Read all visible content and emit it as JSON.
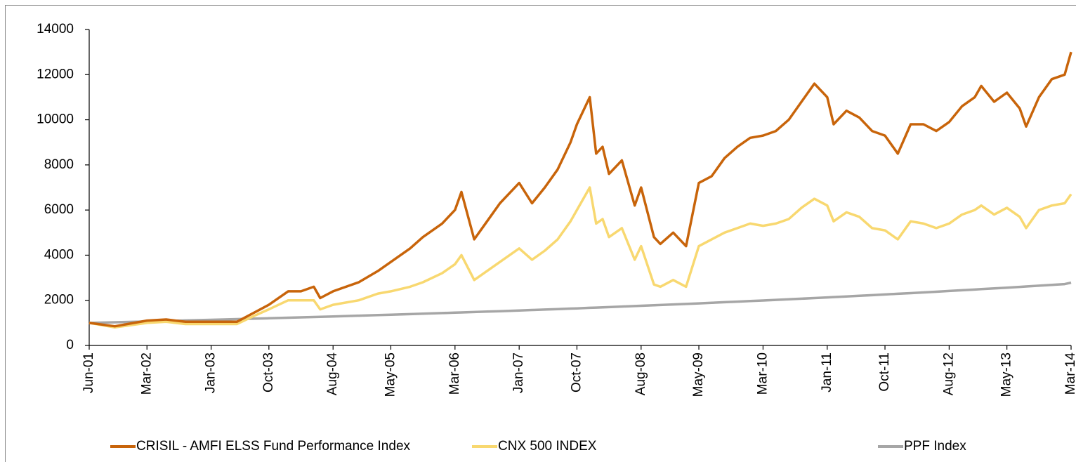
{
  "chart_data": {
    "type": "line",
    "x": [
      "2001-06",
      "2001-10",
      "2002-03",
      "2002-06",
      "2002-09",
      "2003-01",
      "2003-05",
      "2003-08",
      "2003-10",
      "2004-01",
      "2004-03",
      "2004-05",
      "2004-06",
      "2004-08",
      "2004-12",
      "2005-03",
      "2005-05",
      "2005-08",
      "2005-10",
      "2006-01",
      "2006-03",
      "2006-04",
      "2006-06",
      "2006-08",
      "2006-10",
      "2007-01",
      "2007-03",
      "2007-05",
      "2007-07",
      "2007-09",
      "2007-10",
      "2007-12",
      "2008-01",
      "2008-02",
      "2008-03",
      "2008-05",
      "2008-07",
      "2008-08",
      "2008-10",
      "2008-11",
      "2009-01",
      "2009-03",
      "2009-05",
      "2009-07",
      "2009-09",
      "2009-11",
      "2010-01",
      "2010-03",
      "2010-05",
      "2010-07",
      "2010-09",
      "2010-11",
      "2011-01",
      "2011-02",
      "2011-04",
      "2011-06",
      "2011-08",
      "2011-10",
      "2011-12",
      "2012-02",
      "2012-04",
      "2012-06",
      "2012-08",
      "2012-10",
      "2012-12",
      "2013-01",
      "2013-03",
      "2013-05",
      "2013-07",
      "2013-08",
      "2013-10",
      "2013-12",
      "2014-02",
      "2014-03"
    ],
    "series": [
      {
        "name": "CRISIL - AMFI ELSS Fund Performance Index",
        "color": "#c8640a",
        "values": [
          1000,
          850,
          1100,
          1150,
          1050,
          1050,
          1050,
          1500,
          1800,
          2400,
          2400,
          2600,
          2100,
          2400,
          2800,
          3300,
          3700,
          4300,
          4800,
          5400,
          6000,
          6800,
          4700,
          5500,
          6300,
          7200,
          6300,
          7000,
          7800,
          9000,
          9800,
          11000,
          8500,
          8800,
          7600,
          8200,
          6200,
          7000,
          4800,
          4500,
          5000,
          4400,
          7200,
          7500,
          8300,
          8800,
          9200,
          9300,
          9500,
          10000,
          10800,
          11600,
          11000,
          9800,
          10400,
          10100,
          9500,
          9300,
          8500,
          9800,
          9800,
          9500,
          9900,
          10600,
          11000,
          11500,
          10800,
          11200,
          10500,
          9700,
          11000,
          11800,
          12000,
          13000
        ]
      },
      {
        "name": "CNX 500 INDEX",
        "color": "#f8d870",
        "values": [
          1000,
          800,
          1000,
          1050,
          950,
          950,
          950,
          1350,
          1600,
          2000,
          2000,
          2000,
          1600,
          1800,
          2000,
          2300,
          2400,
          2600,
          2800,
          3200,
          3600,
          4000,
          2900,
          3300,
          3700,
          4300,
          3800,
          4200,
          4700,
          5500,
          6000,
          7000,
          5400,
          5600,
          4800,
          5200,
          3800,
          4400,
          2700,
          2600,
          2900,
          2600,
          4400,
          4700,
          5000,
          5200,
          5400,
          5300,
          5400,
          5600,
          6100,
          6500,
          6200,
          5500,
          5900,
          5700,
          5200,
          5100,
          4700,
          5500,
          5400,
          5200,
          5400,
          5800,
          6000,
          6200,
          5800,
          6100,
          5700,
          5200,
          6000,
          6200,
          6300,
          6700
        ]
      },
      {
        "name": "PPF Index",
        "color": "#a6a6a6",
        "values": [
          1000,
          1027,
          1062,
          1084,
          1106,
          1136,
          1166,
          1189,
          1204,
          1228,
          1244,
          1260,
          1268,
          1285,
          1318,
          1344,
          1361,
          1387,
          1405,
          1433,
          1452,
          1461,
          1480,
          1500,
          1519,
          1549,
          1570,
          1590,
          1611,
          1633,
          1644,
          1666,
          1677,
          1688,
          1699,
          1722,
          1745,
          1757,
          1780,
          1792,
          1816,
          1840,
          1865,
          1890,
          1915,
          1940,
          1966,
          1992,
          2019,
          2046,
          2073,
          2100,
          2128,
          2142,
          2171,
          2200,
          2229,
          2259,
          2289,
          2319,
          2350,
          2381,
          2413,
          2445,
          2477,
          2494,
          2527,
          2561,
          2595,
          2612,
          2647,
          2682,
          2718,
          2780
        ]
      }
    ],
    "xlim": [
      "2001-06",
      "2014-03"
    ],
    "xticks": [
      {
        "value": "2001-06",
        "label": "Jun-01"
      },
      {
        "value": "2002-03",
        "label": "Mar-02"
      },
      {
        "value": "2003-01",
        "label": "Jan-03"
      },
      {
        "value": "2003-10",
        "label": "Oct-03"
      },
      {
        "value": "2004-08",
        "label": "Aug-04"
      },
      {
        "value": "2005-05",
        "label": "May-05"
      },
      {
        "value": "2006-03",
        "label": "Mar-06"
      },
      {
        "value": "2007-01",
        "label": "Jan-07"
      },
      {
        "value": "2007-10",
        "label": "Oct-07"
      },
      {
        "value": "2008-08",
        "label": "Aug-08"
      },
      {
        "value": "2009-05",
        "label": "May-09"
      },
      {
        "value": "2010-03",
        "label": "Mar-10"
      },
      {
        "value": "2011-01",
        "label": "Jan-11"
      },
      {
        "value": "2011-10",
        "label": "Oct-11"
      },
      {
        "value": "2012-08",
        "label": "Aug-12"
      },
      {
        "value": "2013-05",
        "label": "May-13"
      },
      {
        "value": "2014-03",
        "label": "Mar-14"
      }
    ],
    "ylim": [
      0,
      14000
    ],
    "yticks": [
      0,
      2000,
      4000,
      6000,
      8000,
      10000,
      12000,
      14000
    ],
    "grid": false,
    "legend": "bottom"
  }
}
